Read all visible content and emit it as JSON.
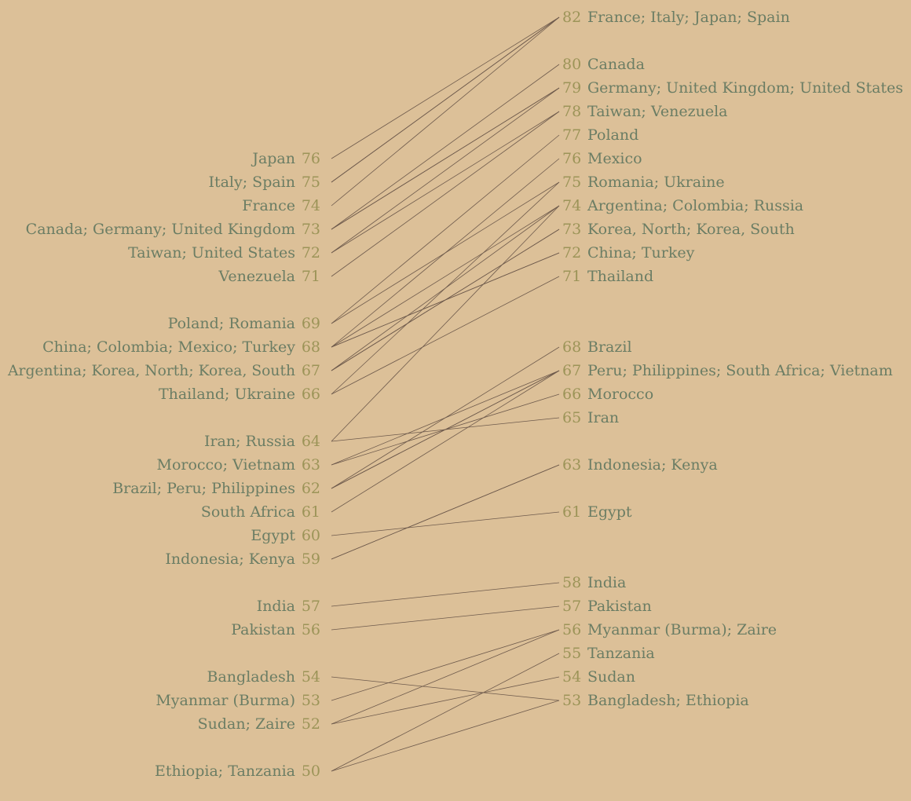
{
  "chart_data": {
    "type": "slope",
    "title": "",
    "left_groups": [
      {
        "value": 76,
        "label": "Japan"
      },
      {
        "value": 75,
        "label": "Italy; Spain"
      },
      {
        "value": 74,
        "label": "France"
      },
      {
        "value": 73,
        "label": "Canada; Germany; United Kingdom"
      },
      {
        "value": 72,
        "label": "Taiwan; United States"
      },
      {
        "value": 71,
        "label": "Venezuela"
      },
      {
        "value": 69,
        "label": "Poland; Romania"
      },
      {
        "value": 68,
        "label": "China; Colombia; Mexico; Turkey"
      },
      {
        "value": 67,
        "label": "Argentina; Korea, North; Korea, South"
      },
      {
        "value": 66,
        "label": "Thailand; Ukraine"
      },
      {
        "value": 64,
        "label": "Iran; Russia"
      },
      {
        "value": 63,
        "label": "Morocco; Vietnam"
      },
      {
        "value": 62,
        "label": "Brazil; Peru; Philippines"
      },
      {
        "value": 61,
        "label": "South Africa"
      },
      {
        "value": 60,
        "label": "Egypt"
      },
      {
        "value": 59,
        "label": "Indonesia; Kenya"
      },
      {
        "value": 57,
        "label": "India"
      },
      {
        "value": 56,
        "label": "Pakistan"
      },
      {
        "value": 54,
        "label": "Bangladesh"
      },
      {
        "value": 53,
        "label": "Myanmar (Burma)"
      },
      {
        "value": 52,
        "label": "Sudan; Zaire"
      },
      {
        "value": 50,
        "label": "Ethiopia; Tanzania"
      }
    ],
    "right_groups": [
      {
        "value": 82,
        "label": "France; Italy; Japan; Spain"
      },
      {
        "value": 80,
        "label": "Canada"
      },
      {
        "value": 79,
        "label": "Germany; United Kingdom; United States"
      },
      {
        "value": 78,
        "label": "Taiwan; Venezuela"
      },
      {
        "value": 77,
        "label": "Poland"
      },
      {
        "value": 76,
        "label": "Mexico"
      },
      {
        "value": 75,
        "label": "Romania; Ukraine"
      },
      {
        "value": 74,
        "label": "Argentina; Colombia; Russia"
      },
      {
        "value": 73,
        "label": "Korea, North; Korea, South"
      },
      {
        "value": 72,
        "label": "China; Turkey"
      },
      {
        "value": 71,
        "label": "Thailand"
      },
      {
        "value": 68,
        "label": "Brazil"
      },
      {
        "value": 67,
        "label": "Peru; Philippines; South Africa; Vietnam"
      },
      {
        "value": 66,
        "label": "Morocco"
      },
      {
        "value": 65,
        "label": "Iran"
      },
      {
        "value": 63,
        "label": "Indonesia; Kenya"
      },
      {
        "value": 61,
        "label": "Egypt"
      },
      {
        "value": 58,
        "label": "India"
      },
      {
        "value": 57,
        "label": "Pakistan"
      },
      {
        "value": 56,
        "label": "Myanmar (Burma); Zaire"
      },
      {
        "value": 55,
        "label": "Tanzania"
      },
      {
        "value": 54,
        "label": "Sudan"
      },
      {
        "value": 53,
        "label": "Bangladesh; Ethiopia"
      }
    ],
    "series": [
      {
        "name": "Japan",
        "values": [
          76,
          82
        ]
      },
      {
        "name": "Italy",
        "values": [
          75,
          82
        ]
      },
      {
        "name": "Spain",
        "values": [
          75,
          82
        ]
      },
      {
        "name": "France",
        "values": [
          74,
          82
        ]
      },
      {
        "name": "Canada",
        "values": [
          73,
          80
        ]
      },
      {
        "name": "Germany",
        "values": [
          73,
          79
        ]
      },
      {
        "name": "United Kingdom",
        "values": [
          73,
          79
        ]
      },
      {
        "name": "Taiwan",
        "values": [
          72,
          78
        ]
      },
      {
        "name": "United States",
        "values": [
          72,
          79
        ]
      },
      {
        "name": "Venezuela",
        "values": [
          71,
          78
        ]
      },
      {
        "name": "Poland",
        "values": [
          69,
          77
        ]
      },
      {
        "name": "Romania",
        "values": [
          69,
          75
        ]
      },
      {
        "name": "China",
        "values": [
          68,
          72
        ]
      },
      {
        "name": "Colombia",
        "values": [
          68,
          74
        ]
      },
      {
        "name": "Mexico",
        "values": [
          68,
          76
        ]
      },
      {
        "name": "Turkey",
        "values": [
          68,
          72
        ]
      },
      {
        "name": "Argentina",
        "values": [
          67,
          74
        ]
      },
      {
        "name": "Korea, North",
        "values": [
          67,
          73
        ]
      },
      {
        "name": "Korea, South",
        "values": [
          67,
          73
        ]
      },
      {
        "name": "Thailand",
        "values": [
          66,
          71
        ]
      },
      {
        "name": "Ukraine",
        "values": [
          66,
          75
        ]
      },
      {
        "name": "Iran",
        "values": [
          64,
          65
        ]
      },
      {
        "name": "Russia",
        "values": [
          64,
          74
        ]
      },
      {
        "name": "Morocco",
        "values": [
          63,
          66
        ]
      },
      {
        "name": "Vietnam",
        "values": [
          63,
          67
        ]
      },
      {
        "name": "Brazil",
        "values": [
          62,
          68
        ]
      },
      {
        "name": "Peru",
        "values": [
          62,
          67
        ]
      },
      {
        "name": "Philippines",
        "values": [
          62,
          67
        ]
      },
      {
        "name": "South Africa",
        "values": [
          61,
          67
        ]
      },
      {
        "name": "Egypt",
        "values": [
          60,
          61
        ]
      },
      {
        "name": "Indonesia",
        "values": [
          59,
          63
        ]
      },
      {
        "name": "Kenya",
        "values": [
          59,
          63
        ]
      },
      {
        "name": "India",
        "values": [
          57,
          58
        ]
      },
      {
        "name": "Pakistan",
        "values": [
          56,
          57
        ]
      },
      {
        "name": "Bangladesh",
        "values": [
          54,
          53
        ]
      },
      {
        "name": "Myanmar (Burma)",
        "values": [
          53,
          56
        ]
      },
      {
        "name": "Sudan",
        "values": [
          52,
          54
        ]
      },
      {
        "name": "Zaire",
        "values": [
          52,
          56
        ]
      },
      {
        "name": "Ethiopia",
        "values": [
          50,
          53
        ]
      },
      {
        "name": "Tanzania",
        "values": [
          50,
          55
        ]
      }
    ],
    "ylim": [
      50,
      82
    ],
    "grid": false,
    "legend": "none"
  }
}
